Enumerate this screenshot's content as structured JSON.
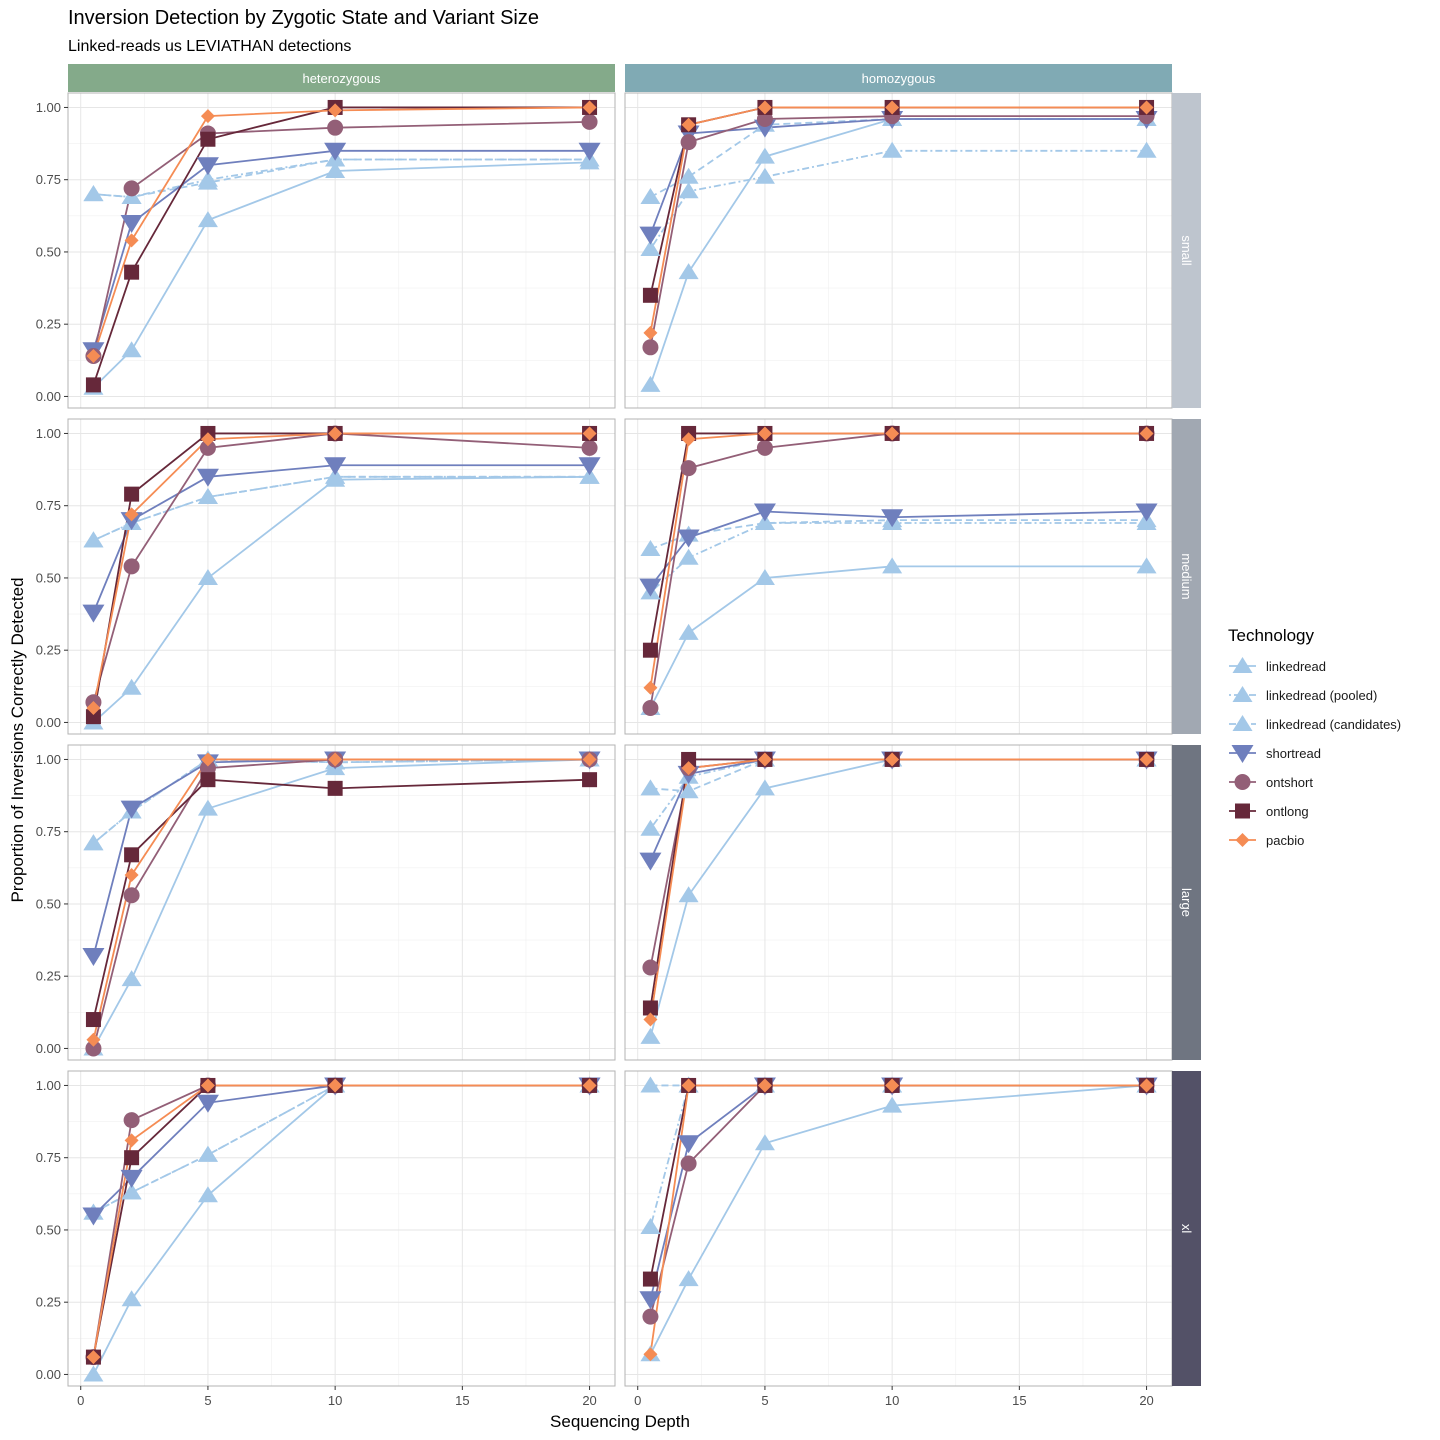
{
  "chart_data": {
    "type": "line",
    "title": "Inversion Detection by Zygotic State and Variant Size",
    "subtitle": "Linked-reads us LEVIATHAN detections",
    "xlabel": "Sequencing Depth",
    "ylabel": "Proportion of Inversions Correctly Detected",
    "xlim": [
      -0.5,
      21
    ],
    "ylim": [
      -0.04,
      1.05
    ],
    "x_ticks": [
      0,
      5,
      10,
      15,
      20
    ],
    "x_tick_labels": [
      "0",
      "5",
      "10",
      "15",
      "20"
    ],
    "y_ticks": [
      0,
      0.25,
      0.5,
      0.75,
      1
    ],
    "y_tick_labels": [
      "0.00",
      "0.25",
      "0.50",
      "0.75",
      "1.00"
    ],
    "x": [
      0.5,
      2,
      5,
      10,
      20
    ],
    "facet_columns": [
      "heterozygous",
      "homozygous"
    ],
    "facet_rows": [
      "small",
      "medium",
      "large",
      "xl"
    ],
    "column_strip_colors": [
      "#84aa8a",
      "#80aab4"
    ],
    "row_strip_colors": [
      "#bec5ce",
      "#a1a8b2",
      "#6f7581",
      "#535167"
    ],
    "legend": {
      "title": "Technology",
      "position": "right",
      "entries": [
        {
          "key": "linkedread",
          "label": "linkedread",
          "color": "#a3c8e8",
          "shape": "triangle-up",
          "line": "solid"
        },
        {
          "key": "linkedread_pooled",
          "label": "linkedread (pooled)",
          "color": "#a3c8e8",
          "shape": "triangle-up",
          "line": "dotdash"
        },
        {
          "key": "linkedread_candidates",
          "label": "linkedread (candidates)",
          "color": "#a3c8e8",
          "shape": "triangle-up",
          "line": "dashed"
        },
        {
          "key": "shortread",
          "label": "shortread",
          "color": "#6f7fbd",
          "shape": "triangle-down",
          "line": "solid"
        },
        {
          "key": "ontshort",
          "label": "ontshort",
          "color": "#935f77",
          "shape": "circle",
          "line": "solid"
        },
        {
          "key": "ontlong",
          "label": "ontlong",
          "color": "#66283a",
          "shape": "square",
          "line": "solid"
        },
        {
          "key": "pacbio",
          "label": "pacbio",
          "color": "#f58c54",
          "shape": "diamond",
          "line": "solid"
        }
      ]
    },
    "panels": [
      {
        "zygosity": "heterozygous",
        "size": "small",
        "series": {
          "linkedread": [
            0.03,
            0.16,
            0.61,
            0.78,
            0.81
          ],
          "linkedread_pooled": [
            0.7,
            0.69,
            0.75,
            0.82,
            0.82
          ],
          "linkedread_candidates": [
            0.7,
            0.69,
            0.74,
            0.82,
            0.82
          ],
          "shortread": [
            0.16,
            0.6,
            0.8,
            0.85,
            0.85
          ],
          "ontshort": [
            0.14,
            0.72,
            0.91,
            0.93,
            0.95
          ],
          "ontlong": [
            0.04,
            0.43,
            0.89,
            1.0,
            1.0
          ],
          "pacbio": [
            0.14,
            0.54,
            0.97,
            0.99,
            1.0
          ]
        }
      },
      {
        "zygosity": "homozygous",
        "size": "small",
        "series": {
          "linkedread": [
            0.04,
            0.43,
            0.83,
            0.96,
            0.96
          ],
          "linkedread_pooled": [
            0.51,
            0.71,
            0.76,
            0.85,
            0.85
          ],
          "linkedread_candidates": [
            0.69,
            0.76,
            0.94,
            0.96,
            0.96
          ],
          "shortread": [
            0.56,
            0.91,
            0.93,
            0.96,
            0.96
          ],
          "ontshort": [
            0.17,
            0.88,
            0.96,
            0.97,
            0.97
          ],
          "ontlong": [
            0.35,
            0.94,
            1.0,
            1.0,
            1.0
          ],
          "pacbio": [
            0.22,
            0.94,
            1.0,
            1.0,
            1.0
          ]
        }
      },
      {
        "zygosity": "heterozygous",
        "size": "medium",
        "series": {
          "linkedread": [
            0.0,
            0.12,
            0.5,
            0.84,
            0.85
          ],
          "linkedread_pooled": [
            0.63,
            0.69,
            0.78,
            0.85,
            0.85
          ],
          "linkedread_candidates": [
            0.63,
            0.69,
            0.78,
            0.85,
            0.85
          ],
          "shortread": [
            0.38,
            0.7,
            0.85,
            0.89,
            0.89
          ],
          "ontshort": [
            0.07,
            0.54,
            0.95,
            1.0,
            0.95
          ],
          "ontlong": [
            0.02,
            0.79,
            1.0,
            1.0,
            1.0
          ],
          "pacbio": [
            0.05,
            0.72,
            0.98,
            1.0,
            1.0
          ]
        }
      },
      {
        "zygosity": "homozygous",
        "size": "medium",
        "series": {
          "linkedread": [
            0.05,
            0.31,
            0.5,
            0.54,
            0.54
          ],
          "linkedread_pooled": [
            0.45,
            0.57,
            0.69,
            0.69,
            0.69
          ],
          "linkedread_candidates": [
            0.6,
            0.65,
            0.69,
            0.7,
            0.7
          ],
          "shortread": [
            0.47,
            0.64,
            0.73,
            0.71,
            0.73
          ],
          "ontshort": [
            0.05,
            0.88,
            0.95,
            1.0,
            1.0
          ],
          "ontlong": [
            0.25,
            1.0,
            1.0,
            1.0,
            1.0
          ],
          "pacbio": [
            0.12,
            0.98,
            1.0,
            1.0,
            1.0
          ]
        }
      },
      {
        "zygosity": "heterozygous",
        "size": "large",
        "series": {
          "linkedread": [
            0.0,
            0.24,
            0.83,
            0.97,
            1.0
          ],
          "linkedread_pooled": [
            0.71,
            0.82,
            1.0,
            0.99,
            1.0
          ],
          "linkedread_candidates": [
            0.71,
            0.82,
            1.0,
            0.99,
            1.0
          ],
          "shortread": [
            0.32,
            0.83,
            0.99,
            1.0,
            1.0
          ],
          "ontshort": [
            0.0,
            0.53,
            0.97,
            1.0,
            1.0
          ],
          "ontlong": [
            0.1,
            0.67,
            0.93,
            0.9,
            0.93
          ],
          "pacbio": [
            0.03,
            0.6,
            1.0,
            1.0,
            1.0
          ]
        }
      },
      {
        "zygosity": "homozygous",
        "size": "large",
        "series": {
          "linkedread": [
            0.04,
            0.53,
            0.9,
            1.0,
            1.0
          ],
          "linkedread_pooled": [
            0.76,
            0.94,
            1.0,
            1.0,
            1.0
          ],
          "linkedread_candidates": [
            0.9,
            0.89,
            1.0,
            1.0,
            1.0
          ],
          "shortread": [
            0.65,
            0.95,
            1.0,
            1.0,
            1.0
          ],
          "ontshort": [
            0.28,
            0.97,
            1.0,
            1.0,
            1.0
          ],
          "ontlong": [
            0.14,
            1.0,
            1.0,
            1.0,
            1.0
          ],
          "pacbio": [
            0.1,
            0.97,
            1.0,
            1.0,
            1.0
          ]
        }
      },
      {
        "zygosity": "heterozygous",
        "size": "xl",
        "series": {
          "linkedread": [
            0.0,
            0.26,
            0.62,
            1.0,
            1.0
          ],
          "linkedread_pooled": [
            0.56,
            0.63,
            0.76,
            1.0,
            1.0
          ],
          "linkedread_candidates": [
            0.56,
            0.63,
            0.76,
            1.0,
            1.0
          ],
          "shortread": [
            0.55,
            0.68,
            0.94,
            1.0,
            1.0
          ],
          "ontshort": [
            0.06,
            0.88,
            1.0,
            1.0,
            1.0
          ],
          "ontlong": [
            0.06,
            0.75,
            1.0,
            1.0,
            1.0
          ],
          "pacbio": [
            0.06,
            0.81,
            1.0,
            1.0,
            1.0
          ]
        }
      },
      {
        "zygosity": "homozygous",
        "size": "xl",
        "series": {
          "linkedread": [
            0.07,
            0.33,
            0.8,
            0.93,
            1.0
          ],
          "linkedread_pooled": [
            0.51,
            1.0,
            1.0,
            1.0,
            1.0
          ],
          "linkedread_candidates": [
            1.0,
            1.0,
            1.0,
            1.0,
            1.0
          ],
          "shortread": [
            0.26,
            0.8,
            1.0,
            1.0,
            1.0
          ],
          "ontshort": [
            0.2,
            0.73,
            1.0,
            1.0,
            1.0
          ],
          "ontlong": [
            0.33,
            1.0,
            1.0,
            1.0,
            1.0
          ],
          "pacbio": [
            0.07,
            1.0,
            1.0,
            1.0,
            1.0
          ]
        }
      }
    ]
  }
}
